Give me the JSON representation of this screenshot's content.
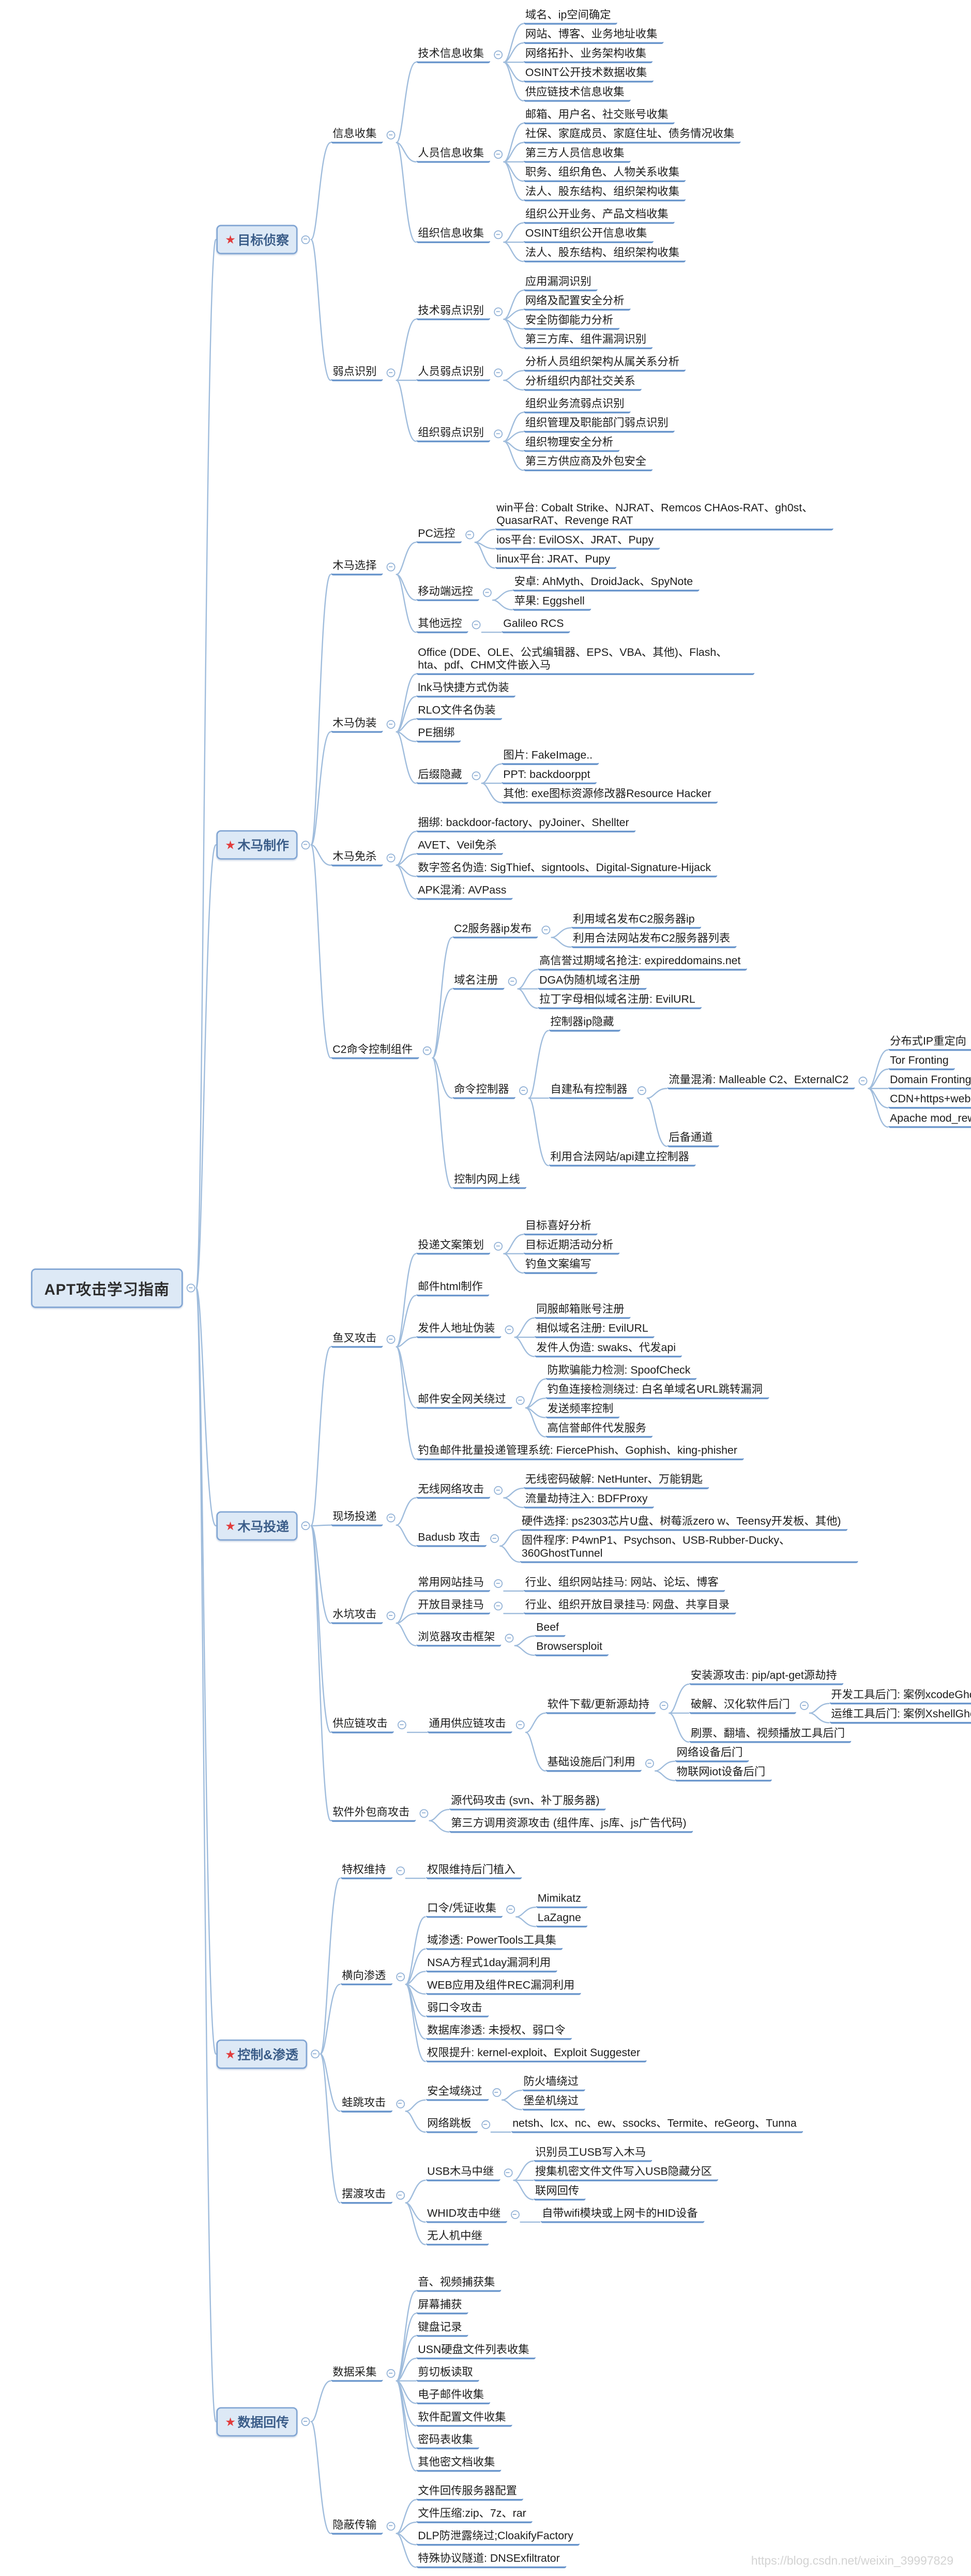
{
  "meta": {
    "app": "mind-map",
    "colors": {
      "underline": "#6a96cc",
      "connector": "#9fbcdc",
      "node_fill": "#dde9f6",
      "node_border": "#81a5d3",
      "star": "#e23c3c",
      "main_text": "#3a5c88",
      "topic_text": "#1c1c1c"
    }
  },
  "watermark": "https://blog.csdn.net/weixin_39997829",
  "tree": {
    "t": "APT攻击学习指南",
    "c": [
      {
        "t": "目标侦察",
        "star": true,
        "c": [
          {
            "t": "信息收集",
            "c": [
              {
                "t": "技术信息收集",
                "c": [
                  {
                    "t": "域名、ip空间确定"
                  },
                  {
                    "t": "网站、博客、业务地址收集"
                  },
                  {
                    "t": "网络拓扑、业务架构收集"
                  },
                  {
                    "t": "OSINT公开技术数据收集"
                  },
                  {
                    "t": "供应链技术信息收集"
                  }
                ]
              },
              {
                "t": "人员信息收集",
                "c": [
                  {
                    "t": "邮箱、用户名、社交账号收集"
                  },
                  {
                    "t": "社保、家庭成员、家庭住址、债务情况收集"
                  },
                  {
                    "t": "第三方人员信息收集"
                  },
                  {
                    "t": "职务、组织角色、人物关系收集"
                  },
                  {
                    "t": "法人、股东结构、组织架构收集"
                  }
                ]
              },
              {
                "t": "组织信息收集",
                "c": [
                  {
                    "t": "组织公开业务、产品文档收集"
                  },
                  {
                    "t": "OSINT组织公开信息收集"
                  },
                  {
                    "t": "法人、股东结构、组织架构收集"
                  }
                ]
              }
            ]
          },
          {
            "t": "弱点识别",
            "c": [
              {
                "t": "技术弱点识别",
                "c": [
                  {
                    "t": "应用漏洞识别"
                  },
                  {
                    "t": "网络及配置安全分析"
                  },
                  {
                    "t": "安全防御能力分析"
                  },
                  {
                    "t": "第三方库、组件漏洞识别"
                  }
                ]
              },
              {
                "t": "人员弱点识别",
                "c": [
                  {
                    "t": "分析人员组织架构从属关系分析"
                  },
                  {
                    "t": "分析组织内部社交关系"
                  }
                ]
              },
              {
                "t": "组织弱点识别",
                "c": [
                  {
                    "t": "组织业务流弱点识别"
                  },
                  {
                    "t": "组织管理及职能部门弱点识别"
                  },
                  {
                    "t": "组织物理安全分析"
                  },
                  {
                    "t": "第三方供应商及外包安全"
                  }
                ]
              }
            ]
          }
        ]
      },
      {
        "t": "木马制作",
        "star": true,
        "c": [
          {
            "t": "木马选择",
            "c": [
              {
                "t": "PC远控",
                "c": [
                  {
                    "t": "win平台: Cobalt Strike、NJRAT、Remcos CHAos-RAT、gh0st、QuasarRAT、Revenge RAT"
                  },
                  {
                    "t": "ios平台: EvilOSX、JRAT、Pupy"
                  },
                  {
                    "t": "linux平台: JRAT、Pupy"
                  }
                ]
              },
              {
                "t": "移动端远控",
                "c": [
                  {
                    "t": "安卓: AhMyth、DroidJack、SpyNote"
                  },
                  {
                    "t": "苹果: Eggshell"
                  }
                ]
              },
              {
                "t": "其他远控",
                "c": [
                  {
                    "t": "Galileo RCS"
                  }
                ]
              }
            ]
          },
          {
            "t": "木马伪装",
            "c": [
              {
                "t": "Office (DDE、OLE、公式编辑器、EPS、VBA、其他)、Flash、hta、pdf、CHM文件嵌入马"
              },
              {
                "t": "lnk马快捷方式伪装"
              },
              {
                "t": "RLO文件名伪装"
              },
              {
                "t": "PE捆绑"
              },
              {
                "t": "后缀隐藏",
                "c": [
                  {
                    "t": "图片: FakeImage.."
                  },
                  {
                    "t": "PPT: backdoorppt"
                  },
                  {
                    "t": "其他: exe图标资源修改器Resource Hacker"
                  }
                ]
              }
            ]
          },
          {
            "t": "木马免杀",
            "c": [
              {
                "t": "捆绑: backdoor-factory、pyJoiner、Shellter"
              },
              {
                "t": "AVET、Veil免杀"
              },
              {
                "t": "数字签名伪造: SigThief、signtools、Digital-Signature-Hijack"
              },
              {
                "t": "APK混淆: AVPass"
              }
            ]
          },
          {
            "t": "C2命令控制组件",
            "c": [
              {
                "t": "C2服务器ip发布",
                "c": [
                  {
                    "t": "利用域名发布C2服务器ip"
                  },
                  {
                    "t": "利用合法网站发布C2服务器列表"
                  }
                ]
              },
              {
                "t": "域名注册",
                "c": [
                  {
                    "t": "高信誉过期域名抢注: expireddomains.net"
                  },
                  {
                    "t": "DGA伪随机域名注册"
                  },
                  {
                    "t": "拉丁字母相似域名注册: EvilURL"
                  }
                ]
              },
              {
                "t": "命令控制器",
                "c": [
                  {
                    "t": "控制器ip隐藏"
                  },
                  {
                    "t": "自建私有控制器",
                    "c": [
                      {
                        "t": "流量混淆: Malleable C2、ExternalC2",
                        "c": [
                          {
                            "t": "分布式IP重定向"
                          },
                          {
                            "t": "Tor Fronting"
                          },
                          {
                            "t": "Domain Fronting域前置"
                          },
                          {
                            "t": "CDN+https+websocket"
                          },
                          {
                            "t": "Apache mod_rewrite HTTP重定向"
                          }
                        ]
                      },
                      {
                        "t": "后备通道"
                      }
                    ]
                  },
                  {
                    "t": "利用合法网站/api建立控制器"
                  }
                ]
              },
              {
                "t": "控制内网上线"
              }
            ]
          }
        ]
      },
      {
        "t": "木马投递",
        "star": true,
        "c": [
          {
            "t": "鱼叉攻击",
            "c": [
              {
                "t": "投递文案策划",
                "c": [
                  {
                    "t": "目标喜好分析"
                  },
                  {
                    "t": "目标近期活动分析"
                  },
                  {
                    "t": "钓鱼文案编写"
                  }
                ]
              },
              {
                "t": "邮件html制作"
              },
              {
                "t": "发件人地址伪装",
                "c": [
                  {
                    "t": "同服邮箱账号注册"
                  },
                  {
                    "t": "相似域名注册: EvilURL"
                  },
                  {
                    "t": "发件人伪造: swaks、代发api"
                  }
                ]
              },
              {
                "t": "邮件安全网关绕过",
                "c": [
                  {
                    "t": "防欺骗能力检测: SpoofCheck"
                  },
                  {
                    "t": "钓鱼连接检测绕过: 白名单域名URL跳转漏洞"
                  },
                  {
                    "t": "发送频率控制"
                  },
                  {
                    "t": "高信誉邮件代发服务"
                  }
                ]
              },
              {
                "t": "钓鱼邮件批量投递管理系统: FiercePhish、Gophish、king-phisher"
              }
            ]
          },
          {
            "t": "现场投递",
            "c": [
              {
                "t": "无线网络攻击",
                "c": [
                  {
                    "t": "无线密码破解: NetHunter、万能钥匙"
                  },
                  {
                    "t": "流量劫持注入: BDFProxy"
                  }
                ]
              },
              {
                "t": "Badusb 攻击",
                "c": [
                  {
                    "t": "硬件选择: ps2303芯片U盘、树莓派zero w、Teensy开发板、其他)"
                  },
                  {
                    "t": "固件程序: P4wnP1、Psychson、USB-Rubber-Ducky、360GhostTunnel"
                  }
                ]
              }
            ]
          },
          {
            "t": "水坑攻击",
            "c": [
              {
                "t": "常用网站挂马",
                "c": [
                  {
                    "t": "行业、组织网站挂马: 网站、论坛、博客"
                  }
                ]
              },
              {
                "t": "开放目录挂马",
                "c": [
                  {
                    "t": "行业、组织开放目录挂马: 网盘、共享目录"
                  }
                ]
              },
              {
                "t": "浏览器攻击框架",
                "c": [
                  {
                    "t": "Beef"
                  },
                  {
                    "t": "Browsersploit"
                  }
                ]
              }
            ]
          },
          {
            "t": "供应链攻击",
            "c": [
              {
                "t": "通用供应链攻击",
                "c": [
                  {
                    "t": "软件下载/更新源劫持",
                    "c": [
                      {
                        "t": "安装源攻击: pip/apt-get源劫持"
                      },
                      {
                        "t": "破解、汉化软件后门",
                        "c": [
                          {
                            "t": "开发工具后门: 案例xcodeGhost"
                          },
                          {
                            "t": "运维工具后门: 案例XshellGhost、putty"
                          }
                        ]
                      },
                      {
                        "t": "刷票、翻墙、视频播放工具后门"
                      }
                    ]
                  },
                  {
                    "t": "基础设施后门利用",
                    "c": [
                      {
                        "t": "网络设备后门"
                      },
                      {
                        "t": "物联网iot设备后门"
                      }
                    ]
                  }
                ]
              }
            ]
          },
          {
            "t": "软件外包商攻击",
            "c": [
              {
                "t": "源代码攻击 (svn、补丁服务器)"
              },
              {
                "t": "第三方调用资源攻击 (组件库、js库、js广告代码)"
              }
            ]
          }
        ]
      },
      {
        "t": "控制&渗透",
        "star": true,
        "c": [
          {
            "t": "特权维持",
            "c": [
              {
                "t": "权限维持后门植入"
              }
            ]
          },
          {
            "t": "横向渗透",
            "c": [
              {
                "t": "口令/凭证收集",
                "c": [
                  {
                    "t": "Mimikatz"
                  },
                  {
                    "t": "LaZagne"
                  }
                ]
              },
              {
                "t": "域渗透: PowerTools工具集"
              },
              {
                "t": "NSA方程式1day漏洞利用"
              },
              {
                "t": "WEB应用及组件REC漏洞利用"
              },
              {
                "t": "弱口令攻击"
              },
              {
                "t": "数据库渗透: 未授权、弱口令"
              },
              {
                "t": "权限提升: kernel-exploit、Exploit Suggester"
              }
            ]
          },
          {
            "t": "蛙跳攻击",
            "c": [
              {
                "t": "安全域绕过",
                "c": [
                  {
                    "t": "防火墙绕过"
                  },
                  {
                    "t": "堡垒机绕过"
                  }
                ]
              },
              {
                "t": "网络跳板",
                "c": [
                  {
                    "t": "netsh、lcx、nc、ew、ssocks、Termite、reGeorg、Tunna"
                  }
                ]
              }
            ]
          },
          {
            "t": "摆渡攻击",
            "c": [
              {
                "t": "USB木马中继",
                "c": [
                  {
                    "t": "识别员工USB写入木马"
                  },
                  {
                    "t": "搜集机密文件文件写入USB隐藏分区"
                  },
                  {
                    "t": "联网回传"
                  }
                ]
              },
              {
                "t": "WHID攻击中继",
                "c": [
                  {
                    "t": "自带wifi模块或上网卡的HID设备"
                  }
                ]
              },
              {
                "t": "无人机中继"
              }
            ]
          }
        ]
      },
      {
        "t": "数据回传",
        "star": true,
        "c": [
          {
            "t": "数据采集",
            "c": [
              {
                "t": "音、视频捕获集"
              },
              {
                "t": "屏幕捕获"
              },
              {
                "t": "键盘记录"
              },
              {
                "t": "USN硬盘文件列表收集"
              },
              {
                "t": "剪切板读取"
              },
              {
                "t": "电子邮件收集"
              },
              {
                "t": "软件配置文件收集"
              },
              {
                "t": "密码表收集"
              },
              {
                "t": "其他密文档收集"
              }
            ]
          },
          {
            "t": "隐蔽传输",
            "c": [
              {
                "t": "文件回传服务器配置"
              },
              {
                "t": "文件压缩:zip、7z、rar"
              },
              {
                "t": "DLP防泄露绕过;CloakifyFactory"
              },
              {
                "t": "特殊协议隧道: DNSExfiltrator"
              }
            ]
          }
        ]
      }
    ]
  }
}
